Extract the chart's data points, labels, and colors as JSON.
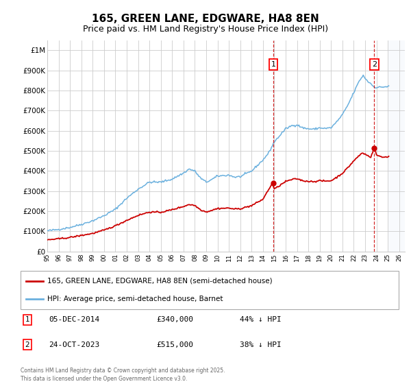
{
  "title": "165, GREEN LANE, EDGWARE, HA8 8EN",
  "subtitle": "Price paid vs. HM Land Registry's House Price Index (HPI)",
  "title_fontsize": 11,
  "subtitle_fontsize": 9,
  "background_color": "#ffffff",
  "grid_color": "#cccccc",
  "hpi_color": "#6ab0de",
  "price_color": "#cc0000",
  "hatch_color": "#dce8f5",
  "annotation1_date": "05-DEC-2014",
  "annotation1_price": "£340,000",
  "annotation1_hpi": "44% ↓ HPI",
  "annotation1_year": 2014.92,
  "annotation1_value": 340000,
  "annotation2_date": "24-OCT-2023",
  "annotation2_price": "£515,000",
  "annotation2_hpi": "38% ↓ HPI",
  "annotation2_year": 2023.81,
  "annotation2_value": 515000,
  "legend_label_price": "165, GREEN LANE, EDGWARE, HA8 8EN (semi-detached house)",
  "legend_label_hpi": "HPI: Average price, semi-detached house, Barnet",
  "footer_text": "Contains HM Land Registry data © Crown copyright and database right 2025.\nThis data is licensed under the Open Government Licence v3.0.",
  "ylim": [
    0,
    1050000
  ],
  "xlim_start": 1995.0,
  "xlim_end": 2026.5,
  "yticks": [
    0,
    100000,
    200000,
    300000,
    400000,
    500000,
    600000,
    700000,
    800000,
    900000,
    1000000
  ],
  "ytick_labels": [
    "£0",
    "£100K",
    "£200K",
    "£300K",
    "£400K",
    "£500K",
    "£600K",
    "£700K",
    "£800K",
    "£900K",
    "£1M"
  ]
}
